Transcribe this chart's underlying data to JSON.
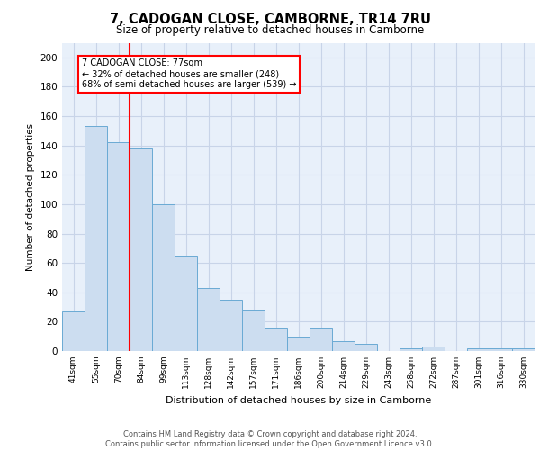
{
  "title": "7, CADOGAN CLOSE, CAMBORNE, TR14 7RU",
  "subtitle": "Size of property relative to detached houses in Camborne",
  "xlabel": "Distribution of detached houses by size in Camborne",
  "ylabel": "Number of detached properties",
  "categories": [
    "41sqm",
    "55sqm",
    "70sqm",
    "84sqm",
    "99sqm",
    "113sqm",
    "128sqm",
    "142sqm",
    "157sqm",
    "171sqm",
    "186sqm",
    "200sqm",
    "214sqm",
    "229sqm",
    "243sqm",
    "258sqm",
    "272sqm",
    "287sqm",
    "301sqm",
    "316sqm",
    "330sqm"
  ],
  "values": [
    27,
    153,
    142,
    138,
    100,
    65,
    43,
    35,
    28,
    16,
    10,
    16,
    7,
    5,
    0,
    2,
    3,
    0,
    2,
    2,
    2
  ],
  "bar_color": "#ccddf0",
  "bar_edge_color": "#6aaad4",
  "grid_color": "#c8d4e8",
  "background_color": "#e8f0fa",
  "red_line_x": 2.5,
  "annotation_text": "7 CADOGAN CLOSE: 77sqm\n← 32% of detached houses are smaller (248)\n68% of semi-detached houses are larger (539) →",
  "annotation_box_color": "white",
  "annotation_box_edge": "red",
  "footer_text": "Contains HM Land Registry data © Crown copyright and database right 2024.\nContains public sector information licensed under the Open Government Licence v3.0.",
  "ylim": [
    0,
    210
  ],
  "yticks": [
    0,
    20,
    40,
    60,
    80,
    100,
    120,
    140,
    160,
    180,
    200
  ],
  "figsize": [
    6.0,
    5.0
  ],
  "dpi": 100
}
